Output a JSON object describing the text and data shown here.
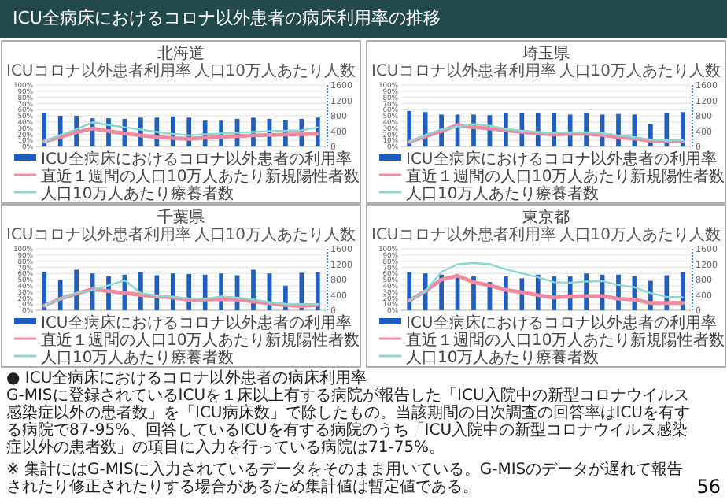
{
  "chart_data": [
    {
      "type": "bar",
      "title": "北海道",
      "categories": [
        null,
        null,
        null,
        null,
        null,
        null,
        null,
        null,
        null,
        null,
        null,
        null,
        null,
        null,
        null,
        null,
        null,
        null
      ],
      "ylabel": "ICUコロナ以外患者利用率",
      "y2label": "人口10万人あたり人数",
      "series": [
        {
          "name": "ICU全病床におけるコロナ以外患者の利用率",
          "type": "bar",
          "color": "#1f5fbf",
          "values": [
            54,
            50,
            50,
            46,
            46,
            45,
            47,
            47,
            49,
            47,
            42,
            42,
            45,
            47,
            45,
            43,
            45,
            47
          ]
        },
        {
          "name": "直近１週間の人口10万人あたり新規陽性者数",
          "type": "line",
          "axis": "y2",
          "color": "#f08aa0",
          "values": [
            130,
            250,
            370,
            470,
            400,
            340,
            290,
            250,
            220,
            200,
            230,
            250,
            270,
            290,
            300,
            310,
            320,
            330
          ]
        },
        {
          "name": "人口10万人あたり療養者数",
          "type": "line",
          "axis": "y2",
          "color": "#8ad8d0",
          "values": [
            120,
            300,
            450,
            630,
            560,
            500,
            440,
            380,
            330,
            290,
            320,
            340,
            360,
            380,
            400,
            410,
            420,
            500
          ]
        }
      ],
      "ylim": [
        0,
        100
      ],
      "yticks": [
        {
          "value": 0,
          "label": "0%"
        },
        {
          "value": 10,
          "label": "10%"
        },
        {
          "value": 20,
          "label": "20%"
        },
        {
          "value": 30,
          "label": "30%"
        },
        {
          "value": 40,
          "label": "40%"
        },
        {
          "value": 50,
          "label": "50%"
        },
        {
          "value": 60,
          "label": "60%"
        },
        {
          "value": 70,
          "label": "70%"
        },
        {
          "value": 80,
          "label": "80%"
        },
        {
          "value": 90,
          "label": "90%"
        },
        {
          "value": 100,
          "label": "100%"
        }
      ],
      "y2lim": [
        0,
        1600
      ],
      "y2ticks": [
        0,
        400,
        800,
        1200,
        1600
      ],
      "grid": "y",
      "legend": "bottom"
    },
    {
      "type": "bar",
      "title": "埼玉県",
      "categories": [
        null,
        null,
        null,
        null,
        null,
        null,
        null,
        null,
        null,
        null,
        null,
        null,
        null,
        null,
        null,
        null,
        null,
        null
      ],
      "ylabel": "ICUコロナ以外患者利用率",
      "y2label": "人口10万人あたり人数",
      "series": [
        {
          "name": "ICU全病床におけるコロナ以外患者の利用率",
          "type": "bar",
          "color": "#1f5fbf",
          "values": [
            58,
            56,
            52,
            52,
            52,
            51,
            54,
            54,
            54,
            54,
            52,
            55,
            52,
            53,
            52,
            36,
            54,
            56
          ]
        },
        {
          "name": "直近１週間の人口10万人あたり新規陽性者数",
          "type": "line",
          "axis": "y2",
          "color": "#f08aa0",
          "values": [
            120,
            260,
            400,
            560,
            500,
            470,
            420,
            380,
            340,
            310,
            330,
            330,
            300,
            240,
            210,
            140,
            130,
            130
          ]
        },
        {
          "name": "人口10万人あたり療養者数",
          "type": "line",
          "axis": "y2",
          "color": "#8ad8d0",
          "values": [
            120,
            300,
            450,
            520,
            580,
            540,
            460,
            410,
            380,
            360,
            370,
            370,
            350,
            290,
            240,
            180,
            160,
            160
          ]
        }
      ],
      "ylim": [
        0,
        100
      ],
      "yticks": [
        {
          "value": 0,
          "label": "0%"
        },
        {
          "value": 10,
          "label": "10%"
        },
        {
          "value": 20,
          "label": "20%"
        },
        {
          "value": 30,
          "label": "30%"
        },
        {
          "value": 40,
          "label": "40%"
        },
        {
          "value": 50,
          "label": "50%"
        },
        {
          "value": 60,
          "label": "60%"
        },
        {
          "value": 70,
          "label": "70%"
        },
        {
          "value": 80,
          "label": "80%"
        },
        {
          "value": 90,
          "label": "90%"
        },
        {
          "value": 100,
          "label": "100%"
        }
      ],
      "y2lim": [
        0,
        1600
      ],
      "y2ticks": [
        0,
        400,
        800,
        1200,
        1600
      ],
      "grid": "y",
      "legend": "bottom"
    },
    {
      "type": "bar",
      "title": "千葉県",
      "categories": [
        null,
        null,
        null,
        null,
        null,
        null,
        null,
        null,
        null,
        null,
        null,
        null,
        null,
        null,
        null,
        null,
        null,
        null
      ],
      "ylabel": "ICUコロナ以外患者利用率",
      "y2label": "人口10万人あたり人数",
      "series": [
        {
          "name": "ICU全病床におけるコロナ以外患者の利用率",
          "type": "bar",
          "color": "#1f5fbf",
          "values": [
            63,
            50,
            66,
            60,
            55,
            58,
            62,
            57,
            60,
            59,
            58,
            60,
            57,
            66,
            60,
            40,
            61,
            62
          ]
        },
        {
          "name": "直近１週間の人口10万人あたり新規陽性者数",
          "type": "line",
          "axis": "y2",
          "color": "#f08aa0",
          "values": [
            120,
            300,
            430,
            550,
            500,
            450,
            400,
            360,
            330,
            270,
            280,
            290,
            280,
            230,
            180,
            130,
            110,
            140
          ]
        },
        {
          "name": "人口10万人あたり療養者数",
          "type": "line",
          "axis": "y2",
          "color": "#8ad8d0",
          "values": [
            120,
            300,
            450,
            520,
            650,
            780,
            450,
            380,
            350,
            310,
            300,
            360,
            330,
            280,
            210,
            170,
            160,
            160
          ]
        }
      ],
      "ylim": [
        0,
        100
      ],
      "yticks": [
        {
          "value": 0,
          "label": "0%"
        },
        {
          "value": 10,
          "label": "10%"
        },
        {
          "value": 20,
          "label": "20%"
        },
        {
          "value": 30,
          "label": "30%"
        },
        {
          "value": 40,
          "label": "40%"
        },
        {
          "value": 50,
          "label": "50%"
        },
        {
          "value": 60,
          "label": "60%"
        },
        {
          "value": 70,
          "label": "70%"
        },
        {
          "value": 80,
          "label": "80%"
        },
        {
          "value": 90,
          "label": "90%"
        },
        {
          "value": 100,
          "label": "100%"
        }
      ],
      "y2lim": [
        0,
        1600
      ],
      "y2ticks": [
        0,
        400,
        800,
        1200,
        1600
      ],
      "grid": "y",
      "legend": "bottom"
    },
    {
      "type": "bar",
      "title": "東京都",
      "categories": [
        null,
        null,
        null,
        null,
        null,
        null,
        null,
        null,
        null,
        null,
        null,
        null,
        null,
        null,
        null,
        null,
        null,
        null
      ],
      "ylabel": "ICUコロナ以外患者利用率",
      "y2label": "人口10万人あたり人数",
      "series": [
        {
          "name": "ICU全病床におけるコロナ以外患者の利用率",
          "type": "bar",
          "color": "#1f5fbf",
          "values": [
            62,
            60,
            58,
            56,
            55,
            46,
            55,
            52,
            58,
            55,
            55,
            60,
            58,
            58,
            55,
            48,
            57,
            62
          ]
        },
        {
          "name": "直近１週間の人口10万人あたり新規陽性者数",
          "type": "line",
          "axis": "y2",
          "color": "#f08aa0",
          "values": [
            250,
            500,
            800,
            900,
            730,
            650,
            530,
            470,
            390,
            330,
            360,
            370,
            370,
            300,
            280,
            190,
            190,
            190
          ]
        },
        {
          "name": "人口10万人あたり療養者数",
          "type": "line",
          "axis": "y2",
          "color": "#8ad8d0",
          "values": [
            250,
            500,
            1000,
            1200,
            1230,
            1200,
            1070,
            960,
            860,
            730,
            720,
            750,
            760,
            660,
            600,
            450,
            350,
            340
          ]
        }
      ],
      "ylim": [
        0,
        100
      ],
      "yticks": [
        {
          "value": 0,
          "label": "0%"
        },
        {
          "value": 10,
          "label": "10%"
        },
        {
          "value": 20,
          "label": "20%"
        },
        {
          "value": 30,
          "label": "30%"
        },
        {
          "value": 40,
          "label": "40%"
        },
        {
          "value": 50,
          "label": "50%"
        },
        {
          "value": 60,
          "label": "60%"
        },
        {
          "value": 70,
          "label": "70%"
        },
        {
          "value": 80,
          "label": "80%"
        },
        {
          "value": 90,
          "label": "90%"
        },
        {
          "value": 100,
          "label": "100%"
        }
      ],
      "y2lim": [
        0,
        1600
      ],
      "y2ticks": [
        0,
        400,
        800,
        1200,
        1600
      ],
      "grid": "y",
      "legend": "bottom"
    },
    {
      "type": "other",
      "title": "ICU全病床におけるコロナ以外患者の病床利用率の推移",
      "annotations": [
        "● ICU全病床におけるコロナ以外患者の病床利用率",
        "G-MISに登録されているICUを１床以上有する病院が報告した「ICU入院中の新型コロナウイルス感染症以外の患者数」を「ICU病床数」で除したもの。当該期間の日次調査の回答率はICUを有する病院で87-95%、回答しているICUを有する病院のうち「ICU入院中の新型コロナウイルス感染症以外の患者数」の項目に入力を行っている病院は71-75%。",
        "※ 集計にはG-MISに入力されているデータをそのまま用いている。G-MISのデータが遅れて報告されたり修正されたりする場合があるため集計値は暫定値である。",
        "56"
      ]
    }
  ]
}
